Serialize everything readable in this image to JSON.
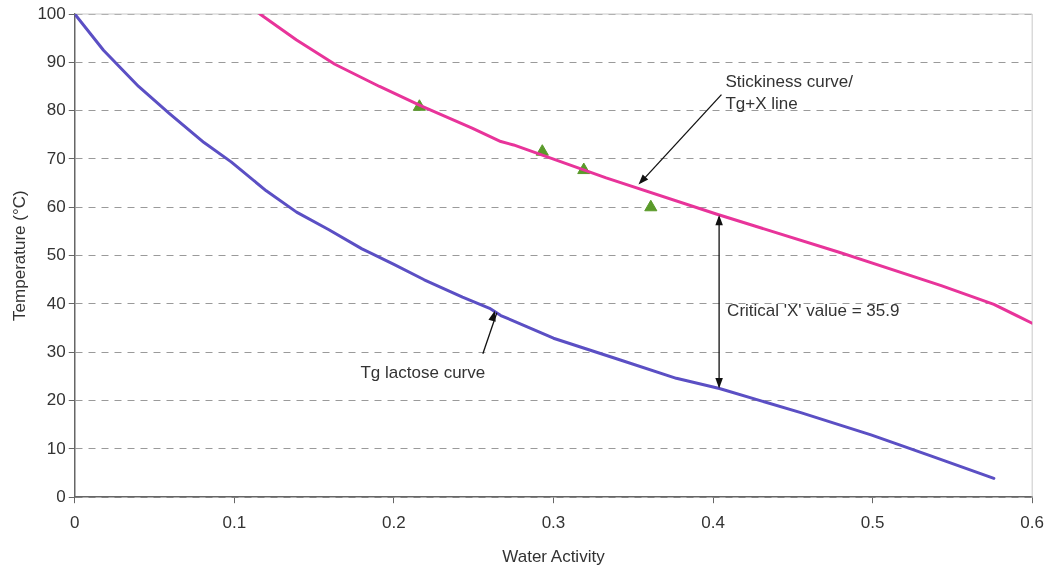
{
  "chart_data": {
    "type": "line",
    "xlabel": "Water Activity",
    "ylabel": "Temperature (°C)",
    "xlim": [
      0,
      0.6
    ],
    "xticks": [
      0,
      0.1,
      0.2,
      0.3,
      0.4,
      0.5,
      0.6
    ],
    "ylim": [
      0,
      100
    ],
    "yticks": [
      0,
      10,
      20,
      30,
      40,
      50,
      60,
      70,
      80,
      90,
      100
    ],
    "grid": "y",
    "legend": false,
    "marker": "none",
    "line_style": "solid",
    "series": [
      {
        "color": "#e8349a",
        "x": [
          0.116,
          0.139,
          0.163,
          0.191,
          0.217,
          0.249,
          0.267,
          0.275,
          0.333,
          0.402,
          0.479,
          0.543,
          0.576,
          0.6
        ],
        "values": [
          100,
          94.6,
          89.6,
          85,
          81,
          76.4,
          73.6,
          72.9,
          66.1,
          58.6,
          50.7,
          43.8,
          39.9,
          36
        ]
      },
      {
        "color": "#5b4fc4",
        "x": [
          0,
          0.018,
          0.04,
          0.059,
          0.081,
          0.098,
          0.12,
          0.139,
          0.159,
          0.18,
          0.2,
          0.219,
          0.243,
          0.26,
          0.267,
          0.3,
          0.34,
          0.377,
          0.404,
          0.455,
          0.499,
          0.536,
          0.576
        ],
        "values": [
          100,
          92.5,
          85,
          79.5,
          73.4,
          69.4,
          63.4,
          59,
          55.4,
          51.4,
          48.2,
          45,
          41.4,
          39.1,
          37.6,
          32.9,
          28.6,
          24.6,
          22.5,
          17.5,
          12.9,
          8.6,
          3.9
        ]
      },
      {
        "type": "scatter",
        "marker": "triangle",
        "color": "#5a9a2a",
        "x": [
          0.216,
          0.293,
          0.319,
          0.361
        ],
        "values": [
          80.8,
          71.5,
          67.7,
          60
        ]
      }
    ],
    "annotations": [
      {
        "text": "Stickiness curve/\nTg+X line",
        "x": 0.352,
        "y": 64.7
      },
      {
        "text": "Tg lactose curve",
        "x": 0.262,
        "y": 39
      },
      "Critical 'X' value = 35.9"
    ]
  }
}
